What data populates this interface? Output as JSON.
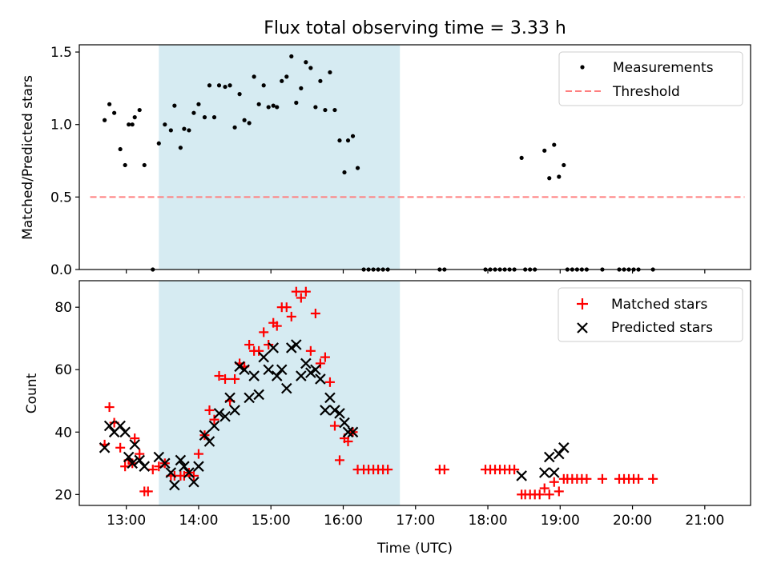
{
  "chart_data": [
    {
      "type": "scatter",
      "title": "Flux total observing time = 3.33 h",
      "xlabel": "",
      "ylabel": "Matched/Predicted stars",
      "xlim": [
        "12:21",
        "21:38"
      ],
      "ylim": [
        0,
        1.55
      ],
      "yticks": [
        "0.0",
        "0.5",
        "1.0",
        "1.5"
      ],
      "grid": false,
      "legend": "upper right",
      "shaded_span": {
        "x0": "13:27",
        "x1": "16:47",
        "color": "#add8e6"
      },
      "series": [
        {
          "name": "Measurements",
          "marker": "dot",
          "color": "#000000",
          "points": [
            [
              "12:42",
              1.03
            ],
            [
              "12:46",
              1.14
            ],
            [
              "12:50",
              1.08
            ],
            [
              "12:55",
              0.83
            ],
            [
              "12:59",
              0.72
            ],
            [
              "13:02",
              1.0
            ],
            [
              "13:05",
              1.0
            ],
            [
              "13:07",
              1.05
            ],
            [
              "13:11",
              1.1
            ],
            [
              "13:15",
              0.72
            ],
            [
              "13:22",
              0.0
            ],
            [
              "13:27",
              0.87
            ],
            [
              "13:32",
              1.0
            ],
            [
              "13:37",
              0.96
            ],
            [
              "13:40",
              1.13
            ],
            [
              "13:45",
              0.84
            ],
            [
              "13:48",
              0.97
            ],
            [
              "13:52",
              0.96
            ],
            [
              "13:56",
              1.08
            ],
            [
              "14:00",
              1.14
            ],
            [
              "14:05",
              1.05
            ],
            [
              "14:09",
              1.27
            ],
            [
              "14:13",
              1.05
            ],
            [
              "14:17",
              1.27
            ],
            [
              "14:22",
              1.26
            ],
            [
              "14:26",
              1.27
            ],
            [
              "14:30",
              0.98
            ],
            [
              "14:34",
              1.21
            ],
            [
              "14:38",
              1.03
            ],
            [
              "14:42",
              1.01
            ],
            [
              "14:46",
              1.33
            ],
            [
              "14:50",
              1.14
            ],
            [
              "14:54",
              1.27
            ],
            [
              "14:58",
              1.12
            ],
            [
              "15:02",
              1.13
            ],
            [
              "15:05",
              1.12
            ],
            [
              "15:09",
              1.3
            ],
            [
              "15:13",
              1.33
            ],
            [
              "15:17",
              1.47
            ],
            [
              "15:21",
              1.15
            ],
            [
              "15:25",
              1.25
            ],
            [
              "15:29",
              1.43
            ],
            [
              "15:33",
              1.39
            ],
            [
              "15:37",
              1.12
            ],
            [
              "15:41",
              1.3
            ],
            [
              "15:45",
              1.1
            ],
            [
              "15:49",
              1.36
            ],
            [
              "15:53",
              1.1
            ],
            [
              "15:57",
              0.89
            ],
            [
              "16:01",
              0.67
            ],
            [
              "16:04",
              0.89
            ],
            [
              "16:08",
              0.92
            ],
            [
              "16:12",
              0.7
            ],
            [
              "16:17",
              0.0
            ],
            [
              "16:21",
              0.0
            ],
            [
              "16:25",
              0.0
            ],
            [
              "16:29",
              0.0
            ],
            [
              "16:33",
              0.0
            ],
            [
              "16:37",
              0.0
            ],
            [
              "17:20",
              0.0
            ],
            [
              "17:24",
              0.0
            ],
            [
              "17:58",
              0.0
            ],
            [
              "18:02",
              0.0
            ],
            [
              "18:06",
              0.0
            ],
            [
              "18:10",
              0.0
            ],
            [
              "18:14",
              0.0
            ],
            [
              "18:18",
              0.0
            ],
            [
              "18:22",
              0.0
            ],
            [
              "18:28",
              0.77
            ],
            [
              "18:31",
              0.0
            ],
            [
              "18:35",
              0.0
            ],
            [
              "18:39",
              0.0
            ],
            [
              "18:47",
              0.82
            ],
            [
              "18:51",
              0.63
            ],
            [
              "18:55",
              0.86
            ],
            [
              "18:59",
              0.64
            ],
            [
              "19:03",
              0.72
            ],
            [
              "19:06",
              0.0
            ],
            [
              "19:10",
              0.0
            ],
            [
              "19:14",
              0.0
            ],
            [
              "19:18",
              0.0
            ],
            [
              "19:22",
              0.0
            ],
            [
              "19:35",
              0.0
            ],
            [
              "19:49",
              0.0
            ],
            [
              "19:53",
              0.0
            ],
            [
              "19:57",
              0.0
            ],
            [
              "20:01",
              0.0
            ],
            [
              "20:05",
              0.0
            ],
            [
              "20:17",
              0.0
            ]
          ]
        },
        {
          "name": "Threshold",
          "marker": "dashed-line",
          "color": "#ff7f7f",
          "points": [
            [
              "12:30",
              0.5
            ],
            [
              "21:33",
              0.5
            ]
          ]
        }
      ]
    },
    {
      "type": "scatter",
      "title": "",
      "xlabel": "Time (UTC)",
      "ylabel": "Count",
      "xlim": [
        "12:21",
        "21:38"
      ],
      "ylim": [
        16.5,
        88.5
      ],
      "xticks": [
        "13:00",
        "14:00",
        "15:00",
        "16:00",
        "17:00",
        "18:00",
        "19:00",
        "20:00",
        "21:00"
      ],
      "yticks": [
        "20",
        "40",
        "60",
        "80"
      ],
      "grid": false,
      "legend": "upper right",
      "shaded_span": {
        "x0": "13:27",
        "x1": "16:47",
        "color": "#add8e6"
      },
      "series": [
        {
          "name": "Matched stars",
          "marker": "plus",
          "color": "#ff0000",
          "points": [
            [
              "12:42",
              36
            ],
            [
              "12:46",
              48
            ],
            [
              "12:50",
              43
            ],
            [
              "12:55",
              35
            ],
            [
              "12:59",
              29
            ],
            [
              "13:02",
              31
            ],
            [
              "13:05",
              30
            ],
            [
              "13:07",
              38
            ],
            [
              "13:11",
              33
            ],
            [
              "13:15",
              21
            ],
            [
              "13:18",
              21
            ],
            [
              "13:22",
              28
            ],
            [
              "13:27",
              29
            ],
            [
              "13:32",
              30
            ],
            [
              "13:37",
              26
            ],
            [
              "13:40",
              26
            ],
            [
              "13:45",
              26
            ],
            [
              "13:48",
              26
            ],
            [
              "13:52",
              27
            ],
            [
              "13:56",
              26
            ],
            [
              "14:00",
              33
            ],
            [
              "14:05",
              39
            ],
            [
              "14:09",
              47
            ],
            [
              "14:13",
              44
            ],
            [
              "14:17",
              58
            ],
            [
              "14:22",
              57
            ],
            [
              "14:26",
              50
            ],
            [
              "14:30",
              57
            ],
            [
              "14:34",
              62
            ],
            [
              "14:38",
              61
            ],
            [
              "14:42",
              68
            ],
            [
              "14:46",
              66
            ],
            [
              "14:50",
              66
            ],
            [
              "14:54",
              72
            ],
            [
              "14:58",
              68
            ],
            [
              "15:02",
              75
            ],
            [
              "15:05",
              74
            ],
            [
              "15:09",
              80
            ],
            [
              "15:13",
              80
            ],
            [
              "15:17",
              77
            ],
            [
              "15:21",
              85
            ],
            [
              "15:25",
              83
            ],
            [
              "15:29",
              85
            ],
            [
              "15:33",
              66
            ],
            [
              "15:37",
              78
            ],
            [
              "15:41",
              62
            ],
            [
              "15:45",
              64
            ],
            [
              "15:49",
              56
            ],
            [
              "15:53",
              42
            ],
            [
              "15:57",
              31
            ],
            [
              "16:01",
              38
            ],
            [
              "16:04",
              37
            ],
            [
              "16:08",
              40
            ],
            [
              "16:12",
              28
            ],
            [
              "16:17",
              28
            ],
            [
              "16:21",
              28
            ],
            [
              "16:25",
              28
            ],
            [
              "16:29",
              28
            ],
            [
              "16:33",
              28
            ],
            [
              "16:37",
              28
            ],
            [
              "17:20",
              28
            ],
            [
              "17:24",
              28
            ],
            [
              "17:58",
              28
            ],
            [
              "18:02",
              28
            ],
            [
              "18:06",
              28
            ],
            [
              "18:10",
              28
            ],
            [
              "18:14",
              28
            ],
            [
              "18:18",
              28
            ],
            [
              "18:22",
              28
            ],
            [
              "18:28",
              20
            ],
            [
              "18:31",
              20
            ],
            [
              "18:35",
              20
            ],
            [
              "18:39",
              20
            ],
            [
              "18:43",
              20
            ],
            [
              "18:47",
              22
            ],
            [
              "18:51",
              20
            ],
            [
              "18:55",
              24
            ],
            [
              "18:59",
              21
            ],
            [
              "19:03",
              25
            ],
            [
              "19:06",
              25
            ],
            [
              "19:10",
              25
            ],
            [
              "19:14",
              25
            ],
            [
              "19:18",
              25
            ],
            [
              "19:22",
              25
            ],
            [
              "19:35",
              25
            ],
            [
              "19:49",
              25
            ],
            [
              "19:53",
              25
            ],
            [
              "19:57",
              25
            ],
            [
              "20:01",
              25
            ],
            [
              "20:05",
              25
            ],
            [
              "20:17",
              25
            ]
          ]
        },
        {
          "name": "Predicted stars",
          "marker": "x",
          "color": "#000000",
          "points": [
            [
              "12:42",
              35
            ],
            [
              "12:46",
              42
            ],
            [
              "12:50",
              40
            ],
            [
              "12:55",
              42
            ],
            [
              "12:59",
              40
            ],
            [
              "13:02",
              32
            ],
            [
              "13:05",
              30
            ],
            [
              "13:07",
              36
            ],
            [
              "13:11",
              31
            ],
            [
              "13:15",
              29
            ],
            [
              "13:27",
              32
            ],
            [
              "13:32",
              30
            ],
            [
              "13:37",
              27
            ],
            [
              "13:40",
              23
            ],
            [
              "13:45",
              31
            ],
            [
              "13:48",
              29
            ],
            [
              "13:52",
              27
            ],
            [
              "13:56",
              24
            ],
            [
              "14:00",
              29
            ],
            [
              "14:05",
              39
            ],
            [
              "14:09",
              37
            ],
            [
              "14:13",
              42
            ],
            [
              "14:17",
              46
            ],
            [
              "14:22",
              45
            ],
            [
              "14:26",
              51
            ],
            [
              "14:30",
              47
            ],
            [
              "14:34",
              61
            ],
            [
              "14:38",
              60
            ],
            [
              "14:42",
              51
            ],
            [
              "14:46",
              58
            ],
            [
              "14:50",
              52
            ],
            [
              "14:54",
              64
            ],
            [
              "14:58",
              60
            ],
            [
              "15:02",
              67
            ],
            [
              "15:05",
              58
            ],
            [
              "15:09",
              60
            ],
            [
              "15:13",
              54
            ],
            [
              "15:17",
              67
            ],
            [
              "15:21",
              68
            ],
            [
              "15:25",
              58
            ],
            [
              "15:29",
              62
            ],
            [
              "15:33",
              59
            ],
            [
              "15:37",
              60
            ],
            [
              "15:41",
              57
            ],
            [
              "15:45",
              47
            ],
            [
              "15:49",
              51
            ],
            [
              "15:53",
              47
            ],
            [
              "15:57",
              46
            ],
            [
              "16:01",
              43
            ],
            [
              "16:04",
              40
            ],
            [
              "16:08",
              40
            ],
            [
              "18:28",
              26
            ],
            [
              "18:47",
              27
            ],
            [
              "18:51",
              32
            ],
            [
              "18:55",
              27
            ],
            [
              "18:59",
              33
            ],
            [
              "19:03",
              35
            ]
          ]
        }
      ]
    }
  ]
}
